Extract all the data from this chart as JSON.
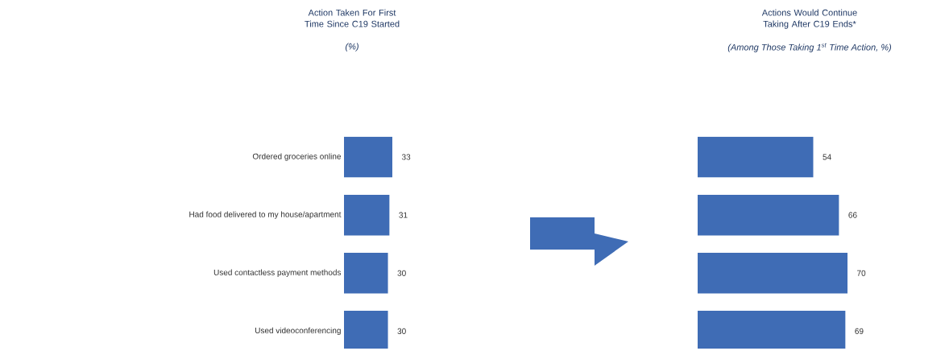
{
  "chart_data": [
    {
      "type": "bar",
      "orientation": "horizontal",
      "title": "Action Taken For First Time Since C19 Started",
      "subtitle": "(%)",
      "categories": [
        "Ordered groceries online",
        "Had food delivered to my house/apartment",
        "Used contactless payment methods",
        "Used videoconferencing"
      ],
      "values": [
        33,
        31,
        30,
        30
      ],
      "color": "#3f6cb5",
      "data_labels": true
    },
    {
      "type": "bar",
      "orientation": "horizontal",
      "title": "Actions Would Continue Taking After C19 Ends*",
      "subtitle": "(Among Those Taking 1$^{st}$ Time Action, %)",
      "categories": [
        null,
        null,
        null,
        null
      ],
      "values": [
        54,
        66,
        70,
        69
      ],
      "color": "#3f6cb5",
      "data_labels": true
    }
  ]
}
